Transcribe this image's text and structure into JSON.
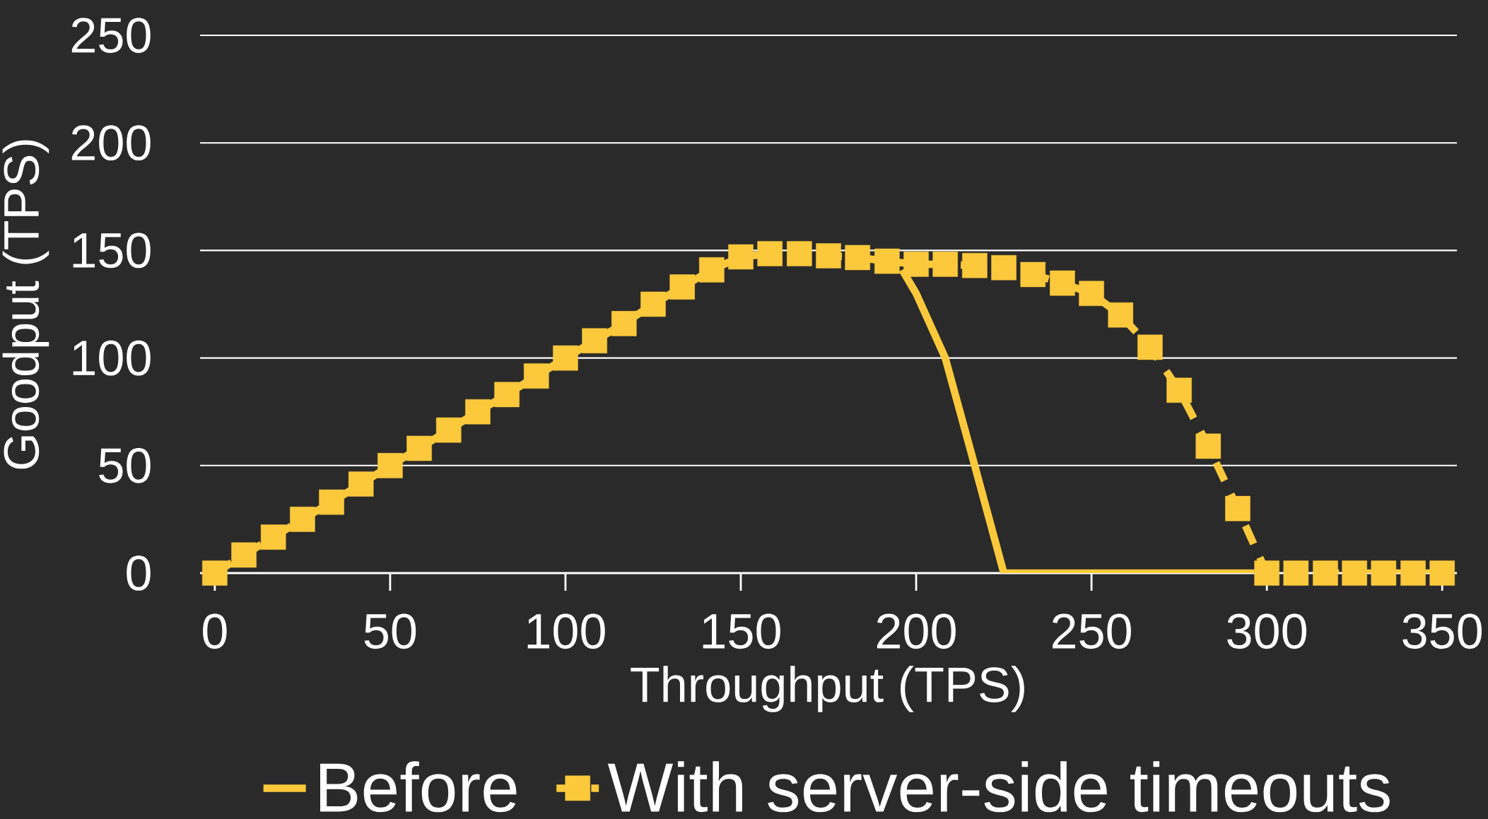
{
  "chart_data": {
    "type": "line",
    "xlabel": "Throughput (TPS)",
    "ylabel": "Goodput (TPS)",
    "x": [
      0,
      8.3,
      16.7,
      25,
      33.3,
      41.7,
      50,
      58.3,
      66.7,
      75,
      83.3,
      91.7,
      100,
      108.3,
      116.7,
      125,
      133.3,
      141.7,
      150,
      158.3,
      166.7,
      175,
      183.3,
      191.7,
      200,
      208.3,
      216.7,
      225,
      233.3,
      241.7,
      250,
      258.3,
      266.7,
      275,
      283.3,
      291.7,
      300,
      308.3,
      316.7,
      325,
      333.3,
      341.7,
      350
    ],
    "series": [
      {
        "name": "Before",
        "color": "#fcc93c",
        "line_style": "solid",
        "marker": "none",
        "x": [
          196,
          200,
          208.3,
          216.7,
          225,
          233.3,
          241.7,
          250,
          258.3,
          266.7,
          275,
          283.3,
          291.7,
          300
        ],
        "values": [
          141,
          130,
          100,
          50,
          0,
          0,
          0,
          0,
          0,
          0,
          0,
          0,
          0,
          0
        ]
      },
      {
        "name": "With server-side timeouts",
        "color": "#fcc93c",
        "line_style": "dashed",
        "marker": "square",
        "values": [
          0,
          8.4,
          16.7,
          25,
          33,
          41.4,
          50,
          58,
          66.5,
          75,
          83,
          91.6,
          100,
          108,
          116,
          125,
          133,
          141,
          147,
          148.5,
          148.5,
          147.5,
          146.7,
          145,
          143.6,
          143.6,
          143,
          142,
          138.8,
          134.8,
          130,
          120,
          105,
          85,
          59,
          30,
          0,
          0,
          0,
          0,
          0,
          0,
          0
        ]
      }
    ],
    "xlim": [
      -4.2,
      354.2
    ],
    "ylim": [
      0,
      250
    ],
    "xticks": [
      0,
      50,
      100,
      150,
      200,
      250,
      300,
      350
    ],
    "yticks": [
      0,
      50,
      100,
      150,
      200,
      250
    ],
    "grid": "y",
    "legend": "bottom"
  }
}
